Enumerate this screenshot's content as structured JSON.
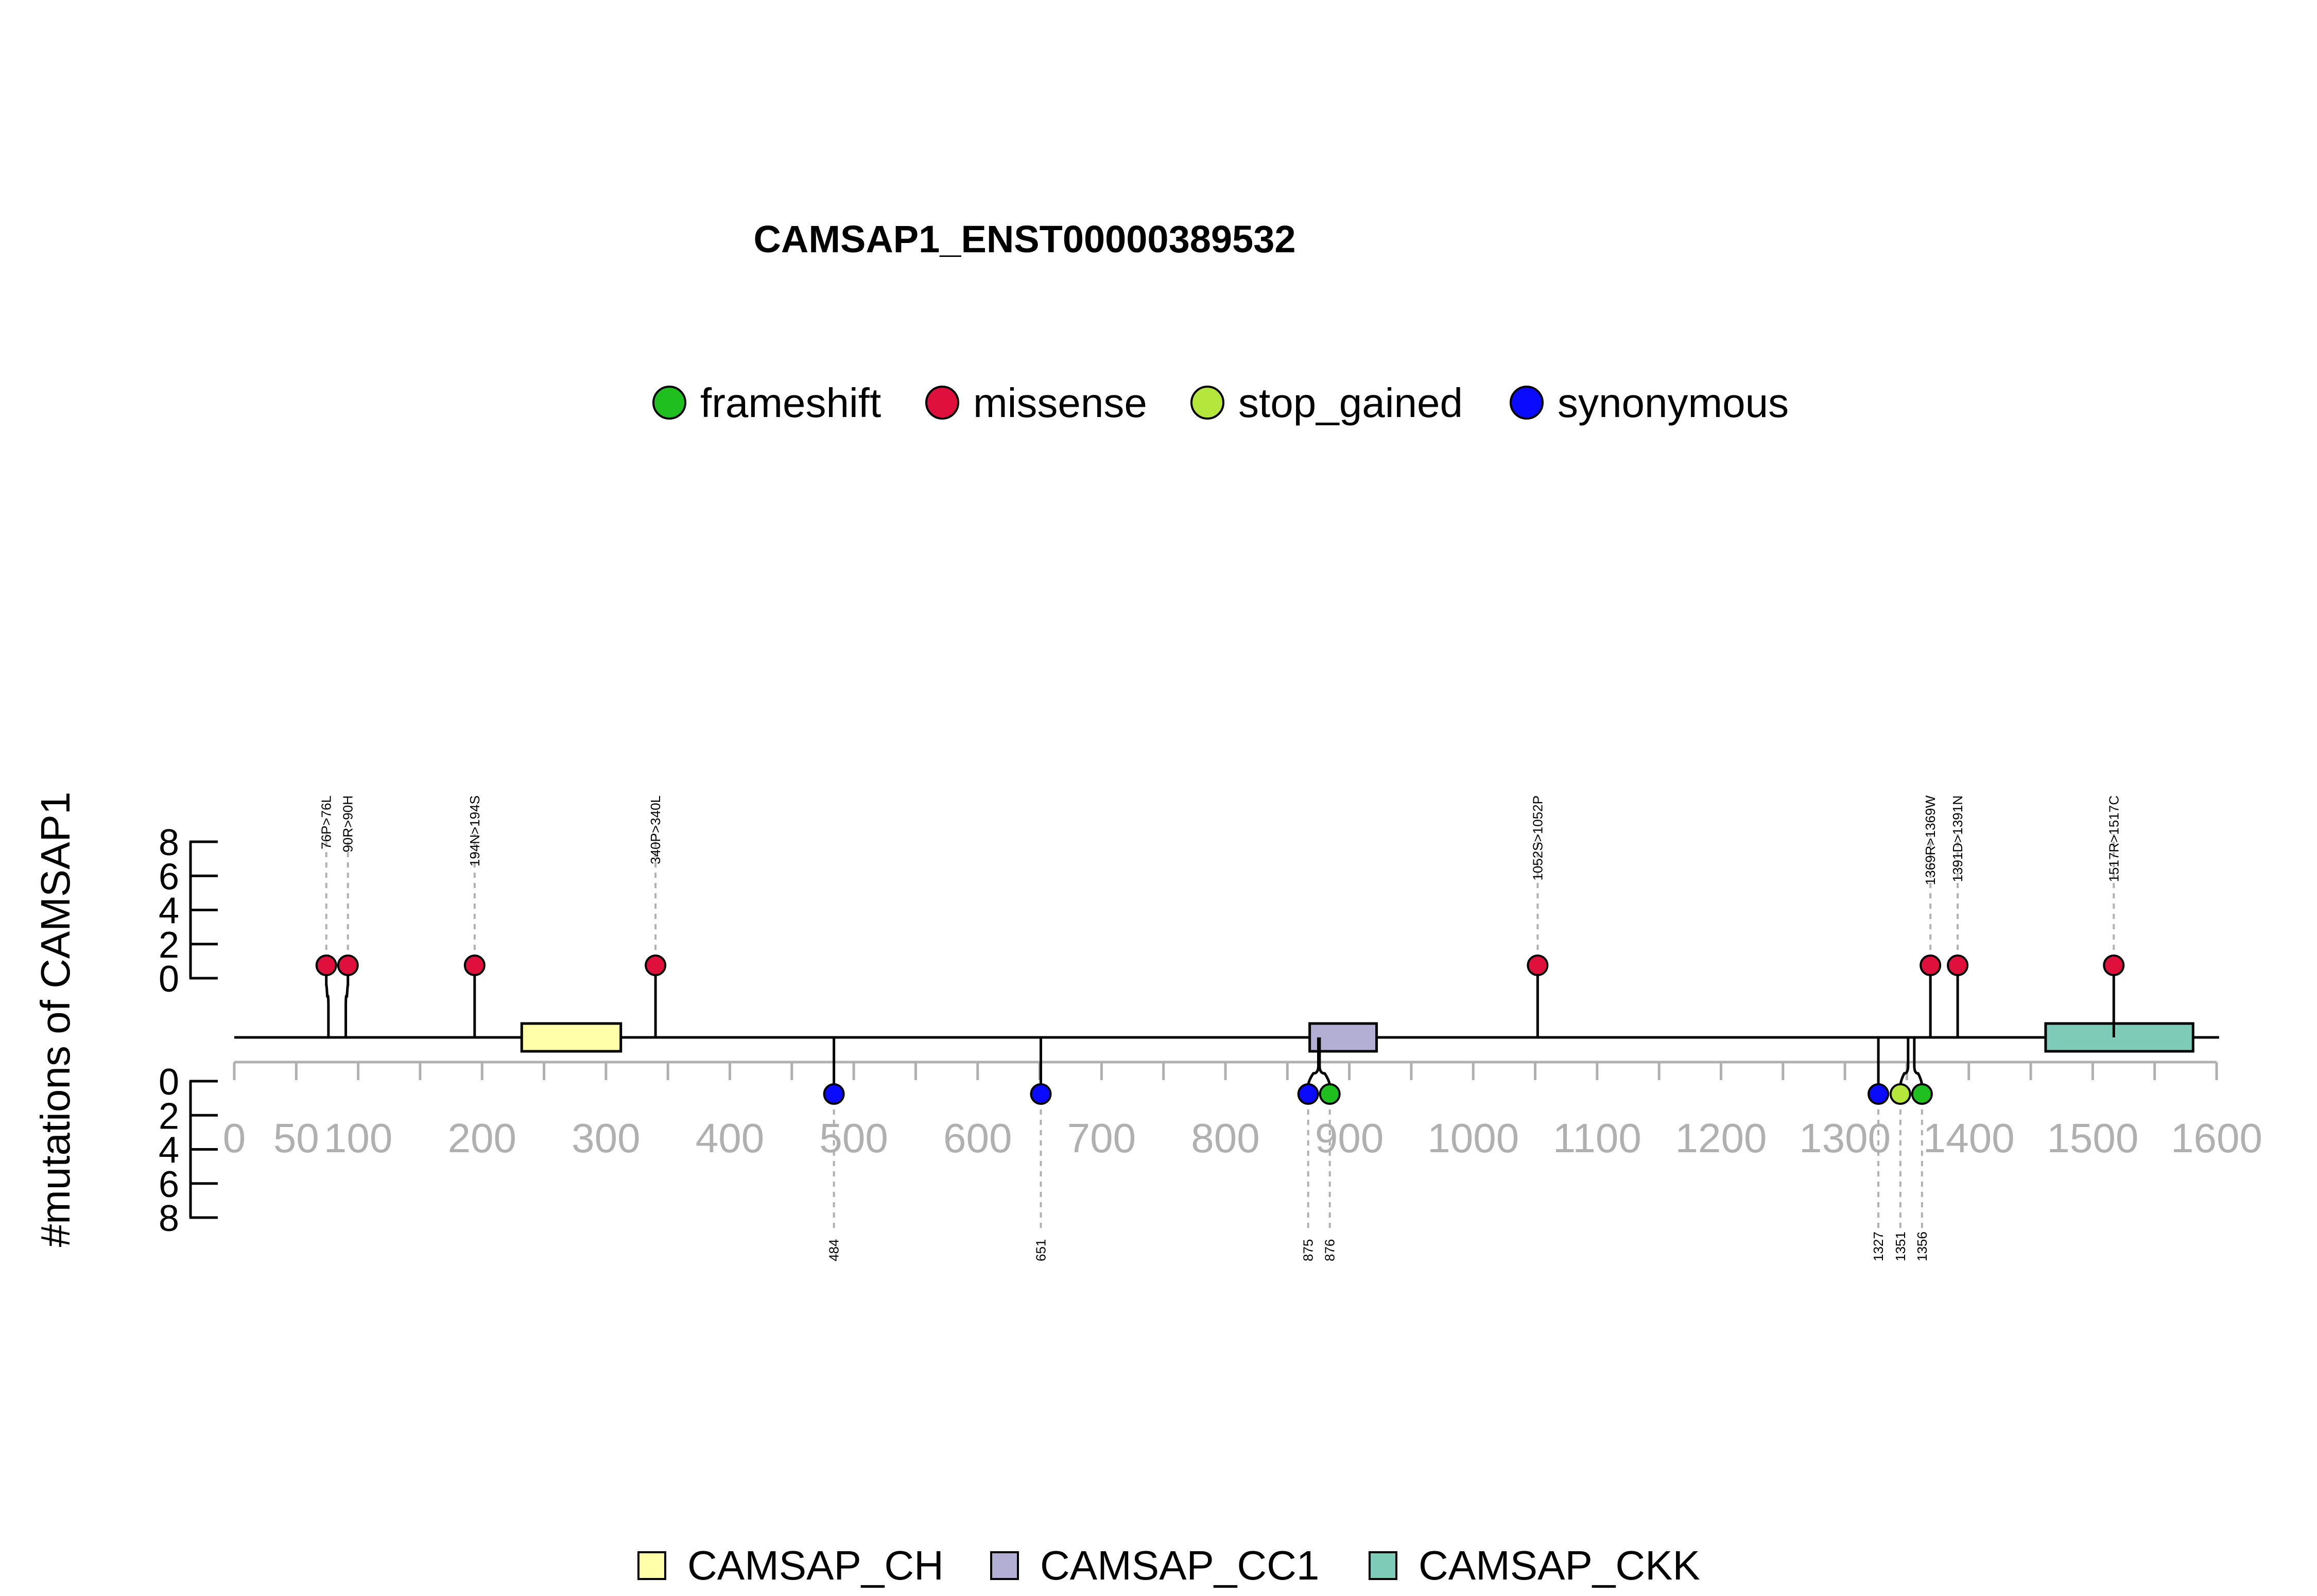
{
  "chart_data": {
    "type": "lollipop",
    "title": "CAMSAP1_ENST00000389532",
    "ylabel": "#mutations of CAMSAP1",
    "protein_length": 1602,
    "xlim": [
      0,
      1600
    ],
    "x_ticks": [
      0,
      50,
      100,
      200,
      300,
      400,
      500,
      600,
      700,
      800,
      900,
      1000,
      1100,
      1200,
      1300,
      1400,
      1500,
      1600
    ],
    "y_ticks": [
      0,
      2,
      4,
      6,
      8
    ],
    "mutation_types": [
      {
        "name": "frameshift",
        "color": "#1fbf1f"
      },
      {
        "name": "missense",
        "color": "#e0103c"
      },
      {
        "name": "stop_gained",
        "color": "#b4e63c"
      },
      {
        "name": "synonymous",
        "color": "#0a0aff"
      }
    ],
    "domains": [
      {
        "name": "CAMSAP_CH",
        "start": 232,
        "end": 312,
        "color": "#ffffaa"
      },
      {
        "name": "CAMSAP_CC1",
        "start": 868,
        "end": 922,
        "color": "#b3aed3"
      },
      {
        "name": "CAMSAP_CKK",
        "start": 1462,
        "end": 1581,
        "color": "#7ecbb7"
      }
    ],
    "mutations_top": [
      {
        "position": 76,
        "label": "76P>76L",
        "type": "missense",
        "count": 1
      },
      {
        "position": 90,
        "label": "90R>90H",
        "type": "missense",
        "count": 1
      },
      {
        "position": 194,
        "label": "194N>194S",
        "type": "missense",
        "count": 1
      },
      {
        "position": 340,
        "label": "340P>340L",
        "type": "missense",
        "count": 1
      },
      {
        "position": 1052,
        "label": "1052S>1052P",
        "type": "missense",
        "count": 1
      },
      {
        "position": 1369,
        "label": "1369R>1369W",
        "type": "missense",
        "count": 1
      },
      {
        "position": 1391,
        "label": "1391D>1391N",
        "type": "missense",
        "count": 1
      },
      {
        "position": 1517,
        "label": "1517R>1517C",
        "type": "missense",
        "count": 1
      }
    ],
    "mutations_bottom": [
      {
        "position": 484,
        "label": "484",
        "type": "synonymous",
        "count": 1
      },
      {
        "position": 651,
        "label": "651",
        "type": "synonymous",
        "count": 1
      },
      {
        "position": 875,
        "label": "875",
        "type": "synonymous",
        "count": 1
      },
      {
        "position": 876,
        "label": "876",
        "type": "frameshift",
        "count": 1
      },
      {
        "position": 1327,
        "label": "1327",
        "type": "synonymous",
        "count": 1
      },
      {
        "position": 1351,
        "label": "1351",
        "type": "stop_gained",
        "count": 1
      },
      {
        "position": 1356,
        "label": "1356",
        "type": "frameshift",
        "count": 1
      }
    ]
  }
}
